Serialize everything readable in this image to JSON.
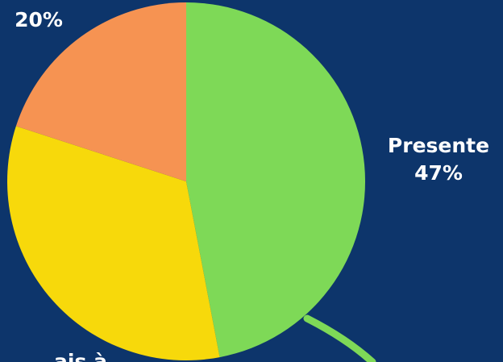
{
  "chart_data": {
    "type": "pie",
    "title": "",
    "slices": [
      {
        "label": "Presente",
        "value": 47,
        "color": "#7ed957"
      },
      {
        "label": "",
        "value": 33,
        "color": "#f7d90b"
      },
      {
        "label": "",
        "value": 20,
        "color": "#f69352"
      }
    ],
    "data_labels": {
      "presente_name": "Presente",
      "presente_value": "47%",
      "orange_value": "20%",
      "partial_bottom": "ais à"
    },
    "colors": {
      "background": "#0d356b",
      "connector": "#7ed957",
      "label_text": "#ffffff"
    }
  }
}
